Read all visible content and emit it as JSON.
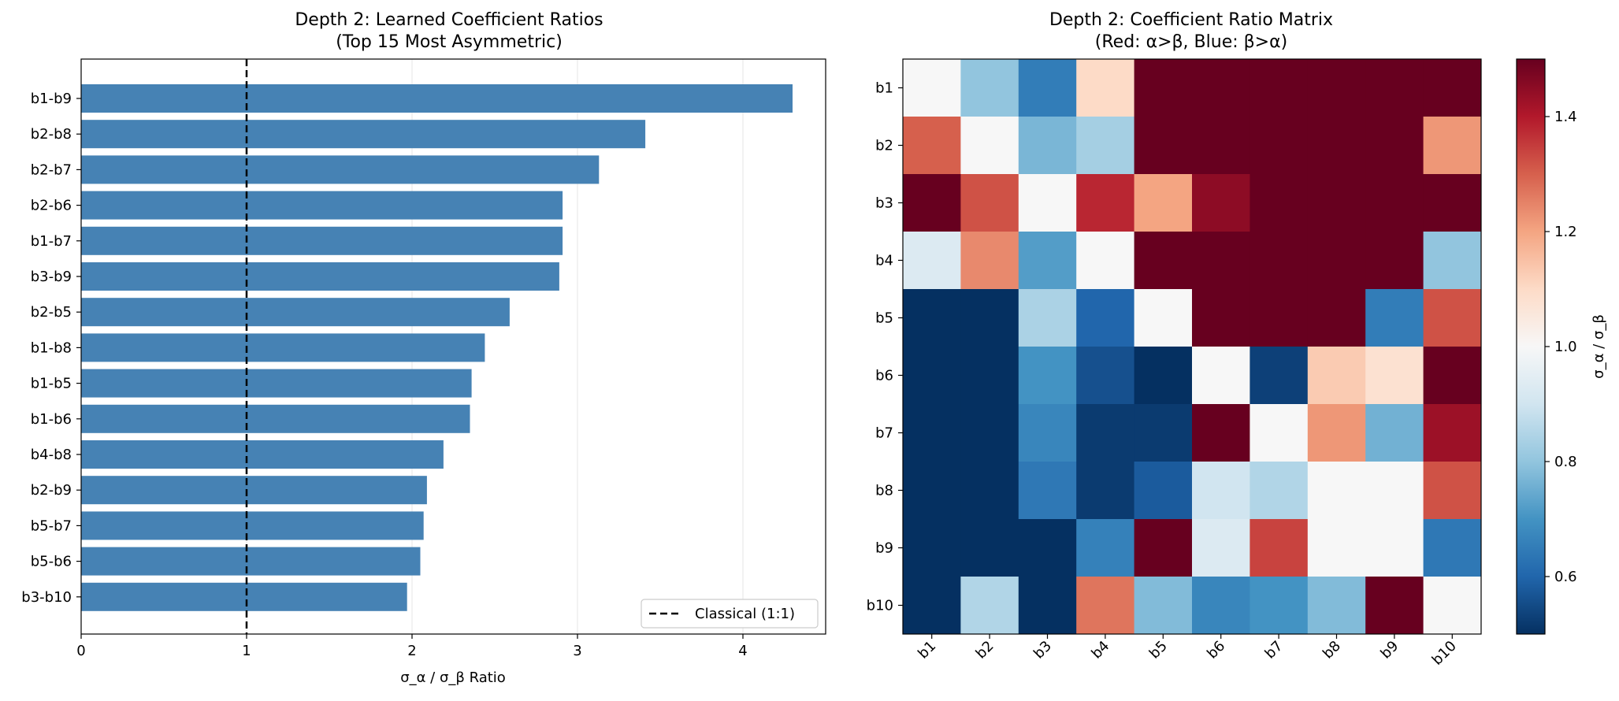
{
  "chart_data": [
    {
      "type": "bar",
      "orientation": "horizontal",
      "title": "Depth 2: Learned Coefficient Ratios",
      "subtitle": "(Top 15 Most Asymmetric)",
      "xlabel": "σ_α / σ_β Ratio",
      "ylabel": "",
      "xlim": [
        0,
        4.5
      ],
      "xticks": [
        0,
        1,
        2,
        3,
        4
      ],
      "grid": "x",
      "bar_color": "#4682b4",
      "categories": [
        "b1-b9",
        "b2-b8",
        "b2-b7",
        "b2-b6",
        "b1-b7",
        "b3-b9",
        "b2-b5",
        "b1-b8",
        "b1-b5",
        "b1-b6",
        "b4-b8",
        "b2-b9",
        "b5-b7",
        "b5-b6",
        "b3-b10"
      ],
      "values": [
        4.3,
        3.41,
        3.13,
        2.91,
        2.91,
        2.89,
        2.59,
        2.44,
        2.36,
        2.35,
        2.19,
        2.09,
        2.07,
        2.05,
        1.97
      ],
      "reference_line": {
        "x": 1,
        "style": "dashed",
        "label": "Classical (1:1)"
      },
      "legend_position": "bottom-right"
    },
    {
      "type": "heatmap",
      "title": "Depth 2: Coefficient Ratio Matrix",
      "subtitle": "(Red: α>β, Blue: β>α)",
      "rows": [
        "b1",
        "b2",
        "b3",
        "b4",
        "b5",
        "b6",
        "b7",
        "b8",
        "b9",
        "b10"
      ],
      "cols": [
        "b1",
        "b2",
        "b3",
        "b4",
        "b5",
        "b6",
        "b7",
        "b8",
        "b9",
        "b10"
      ],
      "values": [
        [
          1.0,
          0.8,
          0.65,
          1.1,
          1.5,
          1.5,
          1.5,
          1.5,
          1.5,
          1.5
        ],
        [
          1.3,
          1.0,
          0.77,
          0.83,
          1.5,
          1.5,
          1.5,
          1.5,
          1.5,
          1.22
        ],
        [
          1.5,
          1.32,
          1.0,
          1.38,
          1.2,
          1.45,
          1.5,
          1.5,
          1.5,
          1.5
        ],
        [
          0.93,
          1.24,
          0.72,
          1.0,
          1.5,
          1.5,
          1.5,
          1.5,
          1.5,
          0.8
        ],
        [
          0.5,
          0.5,
          0.84,
          0.6,
          1.0,
          1.5,
          1.5,
          1.5,
          0.65,
          1.32
        ],
        [
          0.5,
          0.5,
          0.7,
          0.56,
          0.5,
          1.0,
          0.53,
          1.13,
          1.08,
          1.5
        ],
        [
          0.5,
          0.5,
          0.67,
          0.52,
          0.52,
          1.5,
          1.0,
          1.22,
          0.76,
          1.43
        ],
        [
          0.5,
          0.5,
          0.64,
          0.52,
          0.58,
          0.9,
          0.85,
          1.0,
          1.0,
          1.32
        ],
        [
          0.5,
          0.5,
          0.5,
          0.66,
          1.5,
          0.93,
          1.34,
          1.0,
          1.0,
          0.64
        ],
        [
          0.5,
          0.85,
          0.5,
          1.27,
          0.78,
          0.67,
          0.7,
          0.78,
          1.5,
          1.0
        ]
      ],
      "colormap": "RdBu_r",
      "vmin": 0.5,
      "vmax": 1.5,
      "colorbar_label": "σ_α / σ_β",
      "colorbar_ticks": [
        0.6,
        0.8,
        1.0,
        1.2,
        1.4
      ]
    }
  ]
}
